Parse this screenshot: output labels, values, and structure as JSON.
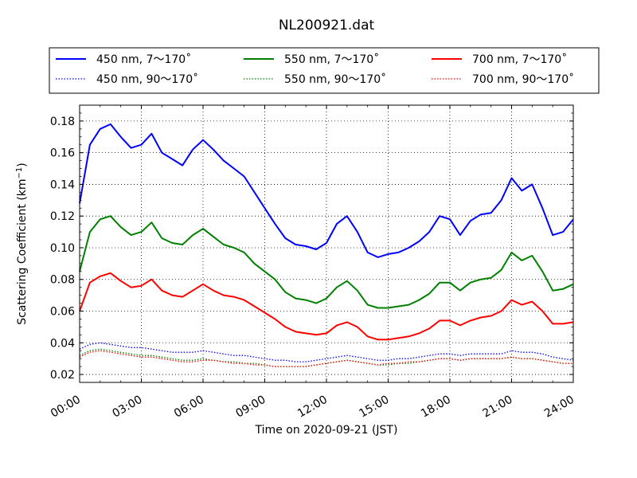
{
  "chart_data": {
    "type": "line",
    "title": "NL200921.dat",
    "xlabel": "Time on 2020-09-21 (JST)",
    "ylabel": "Scattering Coefficient (km",
    "ylabel_exp": "−1",
    "ylabel_end": ")",
    "xlim": [
      "00:00",
      "24:00"
    ],
    "ylim": [
      0.015,
      0.19
    ],
    "x_ticks": [
      "00:00",
      "03:00",
      "06:00",
      "09:00",
      "12:00",
      "15:00",
      "18:00",
      "21:00",
      "24:00"
    ],
    "y_ticks": [
      0.02,
      0.04,
      0.06,
      0.08,
      0.1,
      0.12,
      0.14,
      0.16,
      0.18
    ],
    "y_tick_labels": [
      "0.02",
      "0.04",
      "0.06",
      "0.08",
      "0.10",
      "0.12",
      "0.14",
      "0.16",
      "0.18"
    ],
    "grid": true,
    "legend_position": "top",
    "x": [
      "00:00",
      "00:30",
      "01:00",
      "01:30",
      "02:00",
      "02:30",
      "03:00",
      "03:30",
      "04:00",
      "04:30",
      "05:00",
      "05:30",
      "06:00",
      "06:30",
      "07:00",
      "07:30",
      "08:00",
      "08:30",
      "09:00",
      "09:30",
      "10:00",
      "10:30",
      "11:00",
      "11:30",
      "12:00",
      "12:30",
      "13:00",
      "13:30",
      "14:00",
      "14:30",
      "15:00",
      "15:30",
      "16:00",
      "16:30",
      "17:00",
      "17:30",
      "18:00",
      "18:30",
      "19:00",
      "19:30",
      "20:00",
      "20:30",
      "21:00",
      "21:30",
      "22:00",
      "22:30",
      "23:00",
      "23:30",
      "24:00"
    ],
    "series": [
      {
        "name": "450 nm, 7～170˚",
        "color": "#0000ff",
        "style": "solid",
        "values": [
          0.128,
          0.165,
          0.175,
          0.178,
          0.17,
          0.163,
          0.165,
          0.172,
          0.16,
          0.156,
          0.152,
          0.162,
          0.168,
          0.162,
          0.155,
          0.15,
          0.145,
          0.135,
          0.125,
          0.115,
          0.106,
          0.102,
          0.101,
          0.099,
          0.103,
          0.115,
          0.12,
          0.11,
          0.097,
          0.094,
          0.096,
          0.097,
          0.1,
          0.104,
          0.11,
          0.12,
          0.118,
          0.108,
          0.117,
          0.121,
          0.122,
          0.13,
          0.144,
          0.136,
          0.14,
          0.125,
          0.108,
          0.11,
          0.118
        ]
      },
      {
        "name": "450 nm, 90～170˚",
        "color": "#0000ff",
        "style": "dotted",
        "values": [
          0.036,
          0.039,
          0.04,
          0.039,
          0.038,
          0.037,
          0.037,
          0.036,
          0.035,
          0.034,
          0.034,
          0.034,
          0.035,
          0.034,
          0.033,
          0.032,
          0.032,
          0.031,
          0.03,
          0.029,
          0.029,
          0.028,
          0.028,
          0.029,
          0.03,
          0.031,
          0.032,
          0.031,
          0.03,
          0.029,
          0.029,
          0.03,
          0.03,
          0.031,
          0.032,
          0.033,
          0.033,
          0.032,
          0.033,
          0.033,
          0.033,
          0.033,
          0.035,
          0.034,
          0.034,
          0.033,
          0.031,
          0.03,
          0.029
        ]
      },
      {
        "name": "550 nm, 7～170˚",
        "color": "#008000",
        "style": "solid",
        "values": [
          0.085,
          0.11,
          0.118,
          0.12,
          0.113,
          0.108,
          0.11,
          0.116,
          0.106,
          0.103,
          0.102,
          0.108,
          0.112,
          0.107,
          0.102,
          0.1,
          0.097,
          0.09,
          0.085,
          0.08,
          0.072,
          0.068,
          0.067,
          0.065,
          0.068,
          0.075,
          0.079,
          0.073,
          0.064,
          0.062,
          0.062,
          0.063,
          0.064,
          0.067,
          0.071,
          0.078,
          0.078,
          0.073,
          0.078,
          0.08,
          0.081,
          0.086,
          0.097,
          0.092,
          0.095,
          0.085,
          0.073,
          0.074,
          0.077
        ]
      },
      {
        "name": "550 nm, 90～170˚",
        "color": "#008000",
        "style": "dotted",
        "values": [
          0.032,
          0.035,
          0.036,
          0.035,
          0.034,
          0.033,
          0.032,
          0.032,
          0.031,
          0.03,
          0.029,
          0.029,
          0.03,
          0.029,
          0.028,
          0.028,
          0.027,
          0.027,
          0.026,
          0.025,
          0.025,
          0.025,
          0.025,
          0.026,
          0.027,
          0.028,
          0.029,
          0.028,
          0.027,
          0.026,
          0.026,
          0.027,
          0.027,
          0.028,
          0.029,
          0.03,
          0.03,
          0.029,
          0.03,
          0.03,
          0.03,
          0.03,
          0.031,
          0.03,
          0.03,
          0.029,
          0.028,
          0.027,
          0.027
        ]
      },
      {
        "name": "700 nm, 7～170˚",
        "color": "#ff0000",
        "style": "solid",
        "values": [
          0.06,
          0.078,
          0.082,
          0.084,
          0.079,
          0.075,
          0.076,
          0.08,
          0.073,
          0.07,
          0.069,
          0.073,
          0.077,
          0.073,
          0.07,
          0.069,
          0.067,
          0.063,
          0.059,
          0.055,
          0.05,
          0.047,
          0.046,
          0.045,
          0.046,
          0.051,
          0.053,
          0.05,
          0.044,
          0.042,
          0.042,
          0.043,
          0.044,
          0.046,
          0.049,
          0.054,
          0.054,
          0.051,
          0.054,
          0.056,
          0.057,
          0.06,
          0.067,
          0.064,
          0.066,
          0.06,
          0.052,
          0.052,
          0.053
        ]
      },
      {
        "name": "700 nm, 90～170˚",
        "color": "#ff0000",
        "style": "dotted",
        "values": [
          0.031,
          0.034,
          0.035,
          0.034,
          0.033,
          0.032,
          0.031,
          0.031,
          0.03,
          0.029,
          0.028,
          0.028,
          0.029,
          0.029,
          0.028,
          0.027,
          0.027,
          0.026,
          0.026,
          0.025,
          0.025,
          0.025,
          0.025,
          0.026,
          0.027,
          0.028,
          0.029,
          0.028,
          0.027,
          0.026,
          0.027,
          0.027,
          0.028,
          0.028,
          0.029,
          0.03,
          0.03,
          0.029,
          0.03,
          0.03,
          0.03,
          0.03,
          0.031,
          0.03,
          0.03,
          0.029,
          0.028,
          0.027,
          0.027
        ]
      }
    ]
  }
}
